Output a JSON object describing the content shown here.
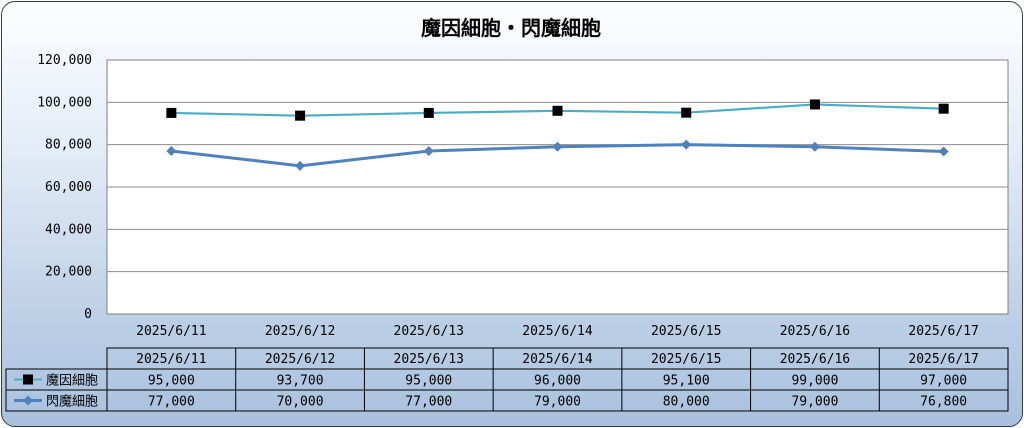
{
  "chart_data": {
    "type": "line",
    "title": "魔因細胞・閃魔細胞",
    "categories": [
      "2025/6/11",
      "2025/6/12",
      "2025/6/13",
      "2025/6/14",
      "2025/6/15",
      "2025/6/16",
      "2025/6/17"
    ],
    "y_ticks": [
      "0",
      "20,000",
      "40,000",
      "60,000",
      "80,000",
      "100,000",
      "120,000"
    ],
    "ylim": [
      0,
      120000
    ],
    "grid": true,
    "legend": "data-table",
    "series": [
      {
        "name": "魔因細胞",
        "values": [
          95000,
          93700,
          95000,
          96000,
          95100,
          99000,
          97000
        ],
        "labels": [
          "95,000",
          "93,700",
          "95,000",
          "96,000",
          "95,100",
          "99,000",
          "97,000"
        ],
        "color": "#4bacc6",
        "marker": "square",
        "marker_color": "#000000"
      },
      {
        "name": "閃魔細胞",
        "values": [
          77000,
          70000,
          77000,
          79000,
          80000,
          79000,
          76800
        ],
        "labels": [
          "77,000",
          "70,000",
          "77,000",
          "79,000",
          "80,000",
          "79,000",
          "76,800"
        ],
        "color": "#4f81bd",
        "marker": "diamond",
        "marker_color": "#4f81bd"
      }
    ]
  }
}
